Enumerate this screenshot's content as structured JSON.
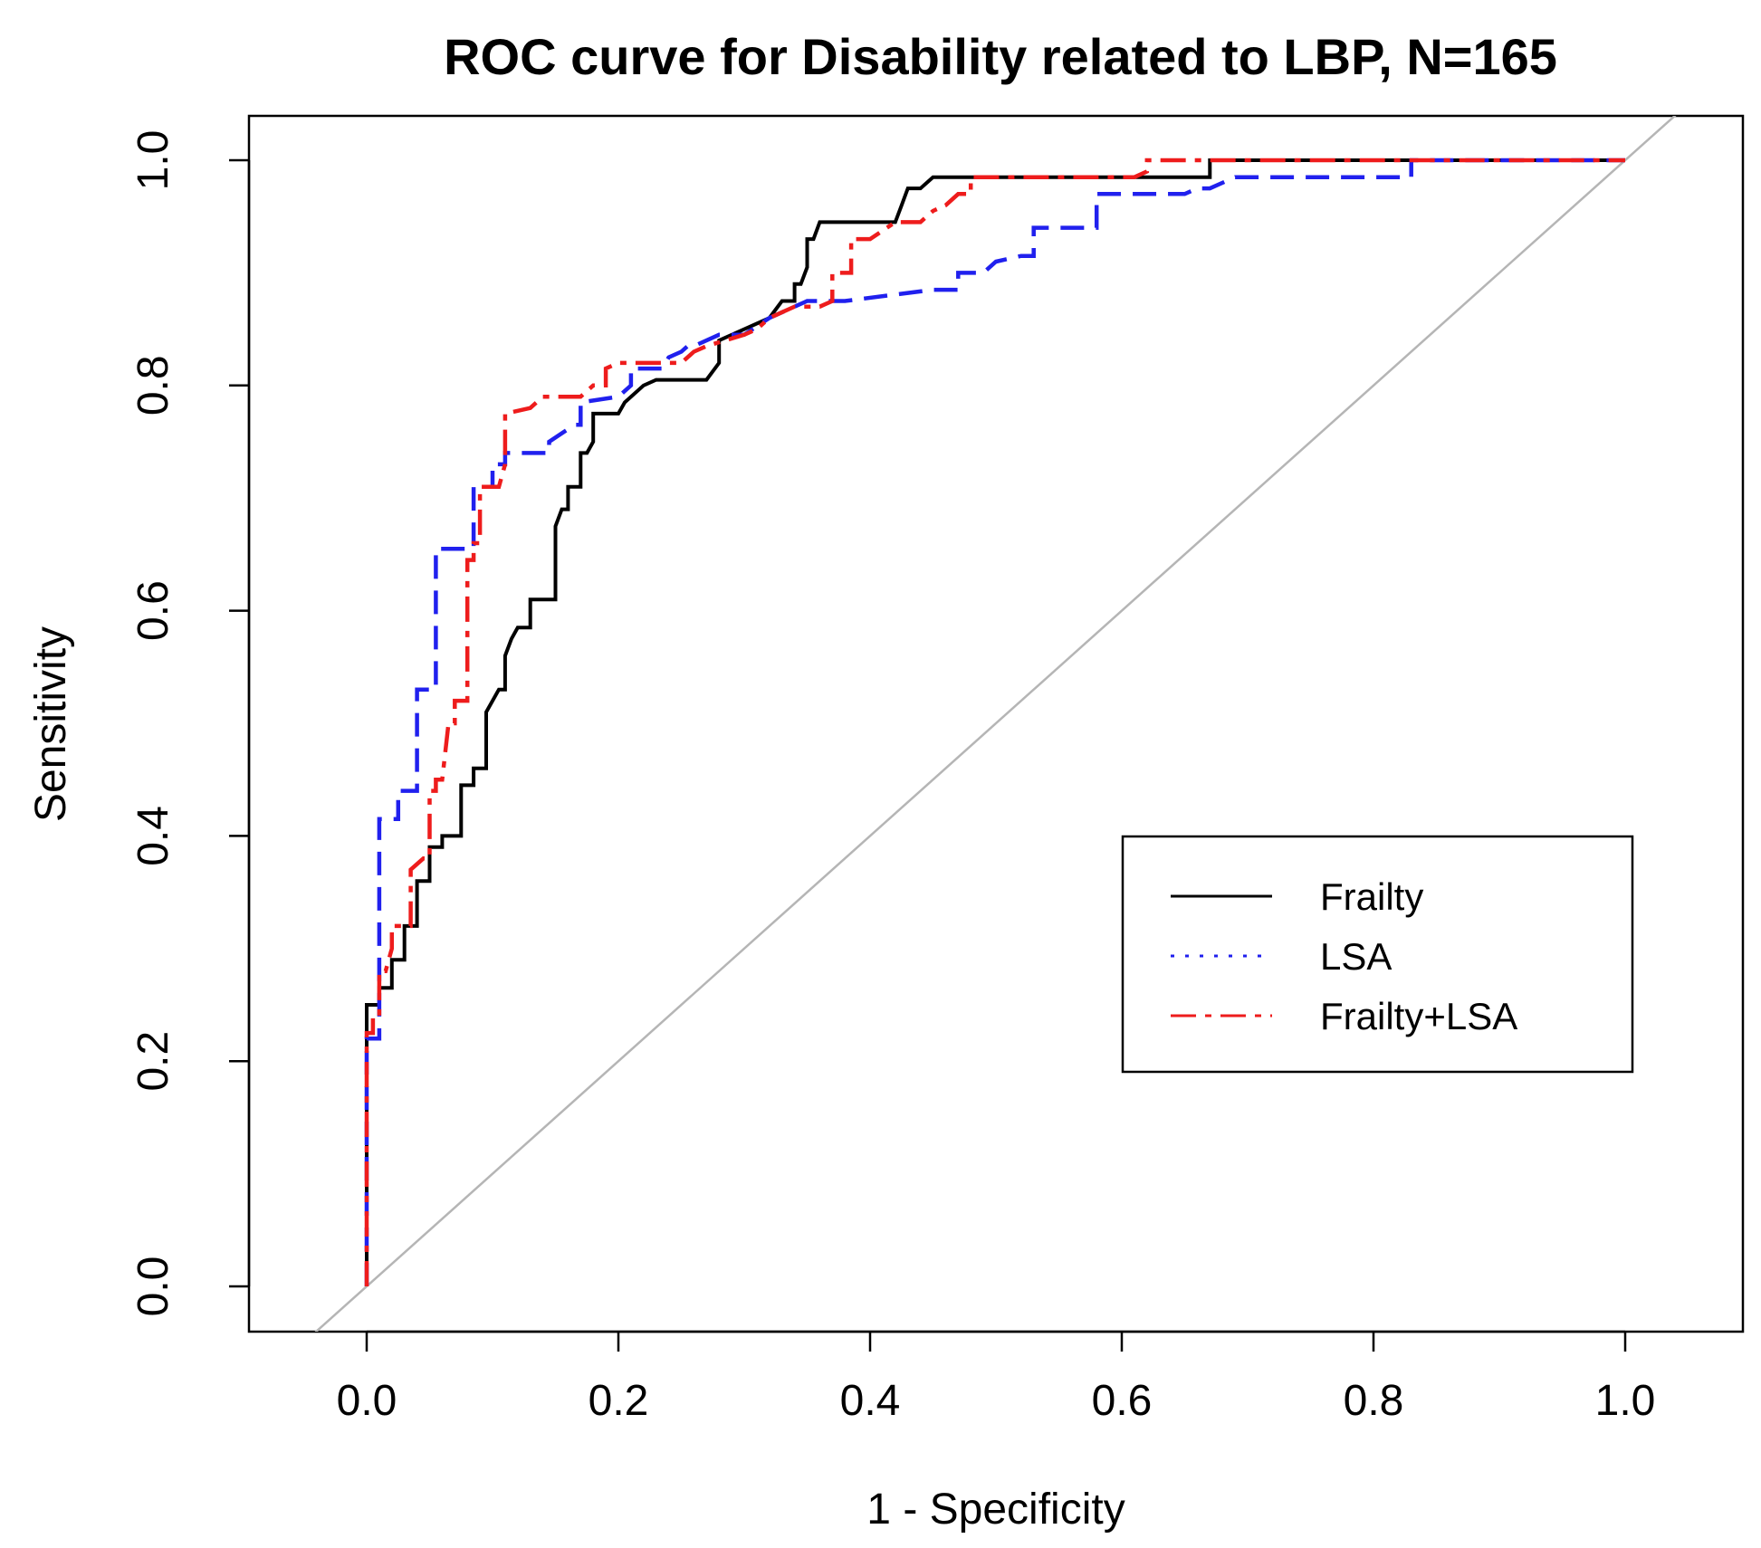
{
  "chart_data": {
    "type": "line",
    "title": "ROC curve for Disability related to LBP, N=165",
    "xlabel": "1 - Specificity",
    "ylabel": "Sensitivity",
    "xlim": [
      -0.09,
      1.05
    ],
    "ylim": [
      -0.04,
      1.04
    ],
    "x_ticks": [
      0.0,
      0.2,
      0.4,
      0.6,
      0.8,
      1.0
    ],
    "x_tick_labels": [
      "0.0",
      "0.2",
      "0.4",
      "0.6",
      "0.8",
      "1.0"
    ],
    "y_ticks": [
      0.0,
      0.2,
      0.4,
      0.6,
      0.8,
      1.0
    ],
    "y_tick_labels": [
      "0.0",
      "0.2",
      "0.4",
      "0.6",
      "0.8",
      "1.0"
    ],
    "legend_position": "center-right",
    "reference_line": {
      "name": "chance",
      "x": [
        -0.05,
        1.05
      ],
      "y": [
        -0.05,
        1.05
      ],
      "color": "#b5b5b5"
    },
    "series": [
      {
        "name": "Frailty",
        "color": "#000000",
        "style": "solid",
        "x": [
          0,
          0,
          0.01,
          0.01,
          0.02,
          0.02,
          0.03,
          0.03,
          0.04,
          0.04,
          0.05,
          0.05,
          0.06,
          0.06,
          0.075,
          0.075,
          0.085,
          0.085,
          0.095,
          0.095,
          0.105,
          0.11,
          0.11,
          0.115,
          0.12,
          0.13,
          0.13,
          0.15,
          0.15,
          0.155,
          0.16,
          0.16,
          0.17,
          0.17,
          0.175,
          0.18,
          0.18,
          0.185,
          0.2,
          0.205,
          0.22,
          0.23,
          0.27,
          0.28,
          0.28,
          0.32,
          0.33,
          0.34,
          0.34,
          0.345,
          0.35,
          0.35,
          0.355,
          0.36,
          0.36,
          0.38,
          0.39,
          0.42,
          0.425,
          0.43,
          0.44,
          0.45,
          0.45,
          0.67,
          0.67,
          0.72,
          0.8,
          0.9,
          1.0
        ],
        "y": [
          0,
          0.25,
          0.25,
          0.265,
          0.265,
          0.29,
          0.29,
          0.32,
          0.32,
          0.36,
          0.36,
          0.39,
          0.39,
          0.4,
          0.4,
          0.445,
          0.445,
          0.46,
          0.46,
          0.51,
          0.53,
          0.53,
          0.56,
          0.575,
          0.585,
          0.585,
          0.61,
          0.61,
          0.675,
          0.69,
          0.69,
          0.71,
          0.71,
          0.74,
          0.74,
          0.75,
          0.775,
          0.775,
          0.775,
          0.785,
          0.8,
          0.805,
          0.805,
          0.82,
          0.84,
          0.86,
          0.875,
          0.875,
          0.89,
          0.89,
          0.905,
          0.93,
          0.93,
          0.945,
          0.945,
          0.945,
          0.945,
          0.945,
          0.96,
          0.975,
          0.975,
          0.985,
          0.985,
          0.985,
          1.0,
          1.0,
          1.0,
          1.0,
          1.0
        ]
      },
      {
        "name": "LSA",
        "color": "#2020ee",
        "style": "dashed",
        "x": [
          0,
          0,
          0.01,
          0.01,
          0.025,
          0.025,
          0.04,
          0.04,
          0.055,
          0.055,
          0.085,
          0.085,
          0.1,
          0.1,
          0.11,
          0.11,
          0.145,
          0.145,
          0.165,
          0.17,
          0.17,
          0.2,
          0.21,
          0.21,
          0.235,
          0.24,
          0.25,
          0.255,
          0.26,
          0.28,
          0.3,
          0.32,
          0.35,
          0.36,
          0.38,
          0.45,
          0.47,
          0.47,
          0.49,
          0.5,
          0.52,
          0.53,
          0.53,
          0.58,
          0.58,
          0.62,
          0.65,
          0.66,
          0.67,
          0.69,
          0.72,
          0.8,
          0.82,
          0.83,
          0.83,
          0.9,
          1.0
        ],
        "y": [
          0,
          0.22,
          0.22,
          0.415,
          0.415,
          0.44,
          0.44,
          0.53,
          0.53,
          0.655,
          0.655,
          0.71,
          0.71,
          0.73,
          0.73,
          0.74,
          0.74,
          0.75,
          0.765,
          0.765,
          0.785,
          0.79,
          0.8,
          0.815,
          0.815,
          0.825,
          0.83,
          0.835,
          0.835,
          0.845,
          0.845,
          0.86,
          0.875,
          0.875,
          0.875,
          0.885,
          0.885,
          0.9,
          0.9,
          0.91,
          0.915,
          0.915,
          0.94,
          0.94,
          0.97,
          0.97,
          0.97,
          0.975,
          0.975,
          0.985,
          0.985,
          0.985,
          0.985,
          0.985,
          1.0,
          1.0,
          1.0
        ]
      },
      {
        "name": "Frailty+LSA",
        "color": "#ee1c1c",
        "style": "dotdash",
        "x": [
          0,
          0,
          0.005,
          0.005,
          0.01,
          0.01,
          0.015,
          0.02,
          0.02,
          0.035,
          0.035,
          0.045,
          0.05,
          0.05,
          0.055,
          0.055,
          0.06,
          0.065,
          0.07,
          0.07,
          0.08,
          0.08,
          0.085,
          0.085,
          0.09,
          0.09,
          0.105,
          0.11,
          0.11,
          0.13,
          0.14,
          0.17,
          0.18,
          0.19,
          0.19,
          0.2,
          0.22,
          0.25,
          0.26,
          0.27,
          0.3,
          0.31,
          0.32,
          0.33,
          0.34,
          0.345,
          0.36,
          0.37,
          0.37,
          0.38,
          0.385,
          0.385,
          0.4,
          0.42,
          0.44,
          0.45,
          0.46,
          0.47,
          0.48,
          0.48,
          0.5,
          0.55,
          0.6,
          0.61,
          0.62,
          0.62,
          0.7,
          0.8,
          1.0
        ],
        "y": [
          0,
          0.225,
          0.225,
          0.24,
          0.24,
          0.28,
          0.28,
          0.3,
          0.32,
          0.32,
          0.37,
          0.38,
          0.38,
          0.44,
          0.44,
          0.45,
          0.45,
          0.5,
          0.5,
          0.52,
          0.52,
          0.645,
          0.645,
          0.66,
          0.66,
          0.71,
          0.71,
          0.73,
          0.775,
          0.78,
          0.79,
          0.79,
          0.8,
          0.8,
          0.815,
          0.82,
          0.82,
          0.82,
          0.83,
          0.835,
          0.845,
          0.85,
          0.86,
          0.865,
          0.87,
          0.87,
          0.87,
          0.875,
          0.9,
          0.9,
          0.9,
          0.93,
          0.93,
          0.945,
          0.945,
          0.955,
          0.96,
          0.97,
          0.97,
          0.985,
          0.985,
          0.985,
          0.985,
          0.985,
          0.99,
          1.0,
          1.0,
          1.0,
          1.0
        ]
      }
    ]
  }
}
